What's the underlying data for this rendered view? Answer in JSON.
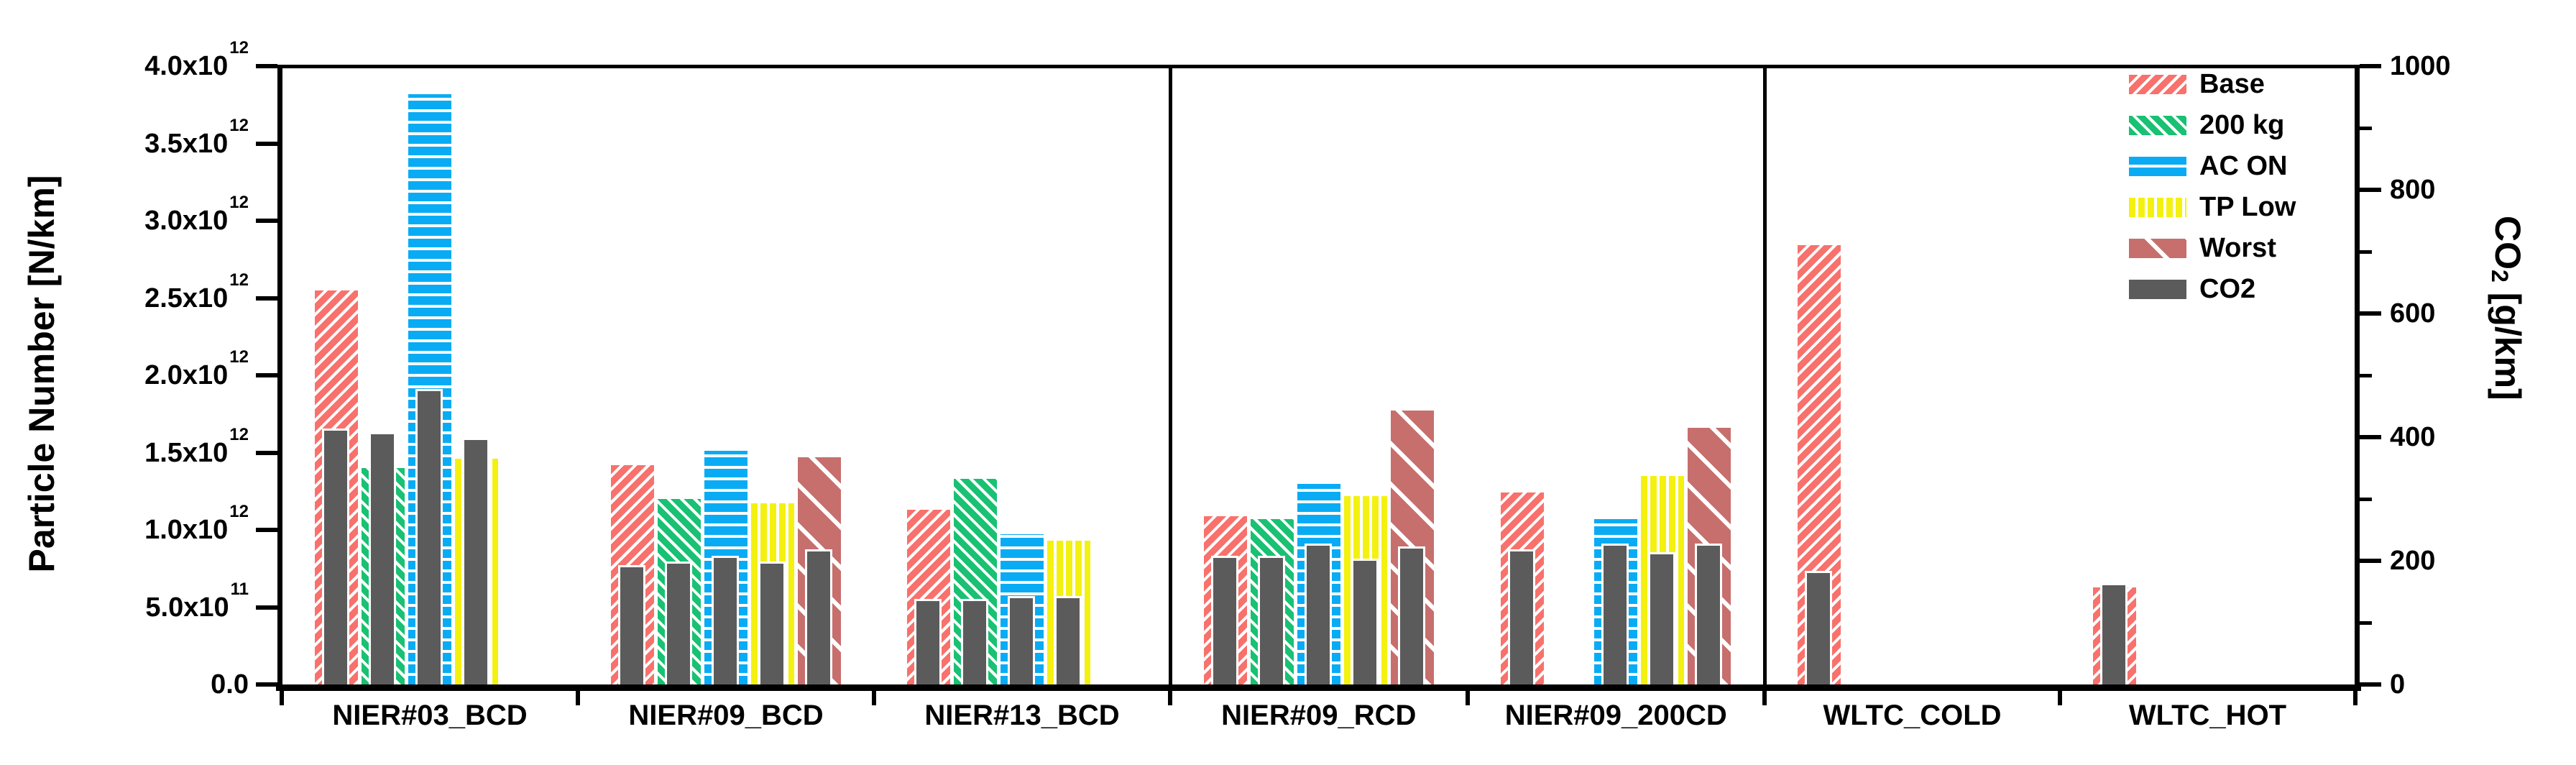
{
  "chart_data": {
    "type": "bar",
    "dual_axis": true,
    "left_axis": {
      "label": "Particle Number [N/km]",
      "min": 0,
      "max": 4000000000000.0,
      "major_step": 500000000000.0,
      "ticks": [
        {
          "m": "0.0",
          "e": ""
        },
        {
          "m": "5.0x10",
          "e": "11"
        },
        {
          "m": "1.0x10",
          "e": "12"
        },
        {
          "m": "1.5x10",
          "e": "12"
        },
        {
          "m": "2.0x10",
          "e": "12"
        },
        {
          "m": "2.5x10",
          "e": "12"
        },
        {
          "m": "3.0x10",
          "e": "12"
        },
        {
          "m": "3.5x10",
          "e": "12"
        },
        {
          "m": "4.0x10",
          "e": "12"
        }
      ]
    },
    "right_axis": {
      "label": "CO2 [g/km]",
      "label_pre": "CO",
      "label_sub": "2",
      "label_post": " [g/km]",
      "min": 0,
      "max": 1000,
      "major_step": 200,
      "minor_step": 100,
      "ticks": [
        "0",
        "200",
        "400",
        "600",
        "800",
        "1000"
      ]
    },
    "legend_position": "top-right",
    "grid": false,
    "series_slots": [
      "Base",
      "200 kg",
      "AC ON",
      "TP Low",
      "Worst"
    ],
    "co2_color": "#5b5b5b",
    "legend": [
      {
        "label": "Base",
        "color": "#f8716c",
        "pattern": "diag-up"
      },
      {
        "label": "200 kg",
        "color": "#19c173",
        "pattern": "diag-down"
      },
      {
        "label": "AC ON",
        "color": "#09acf4",
        "pattern": "horiz"
      },
      {
        "label": "TP Low",
        "color": "#f4f111",
        "pattern": "vert"
      },
      {
        "label": "Worst",
        "color": "#c66f6d",
        "pattern": "diag-down-wide"
      },
      {
        "label": "CO2",
        "color": "#5b5b5b",
        "pattern": "solid"
      }
    ],
    "sections": [
      [
        "NIER#03_BCD",
        "NIER#09_BCD",
        "NIER#13_BCD"
      ],
      [
        "NIER#09_RCD",
        "NIER#09_200CD"
      ],
      [
        "WLTC_COLD",
        "WLTC_HOT"
      ]
    ],
    "groups": [
      {
        "label": "NIER#03_BCD",
        "bars": {
          "Base": {
            "pn": 2550000000000.0,
            "co2": 410
          },
          "200 kg": {
            "pn": 1400000000000.0,
            "co2": 405
          },
          "AC ON": {
            "pn": 3820000000000.0,
            "co2": 475
          },
          "TP Low": {
            "pn": 1460000000000.0,
            "co2": 395
          }
        }
      },
      {
        "label": "NIER#09_BCD",
        "bars": {
          "Base": {
            "pn": 1420000000000.0,
            "co2": 190
          },
          "200 kg": {
            "pn": 1200000000000.0,
            "co2": 195
          },
          "AC ON": {
            "pn": 1510000000000.0,
            "co2": 205
          },
          "TP Low": {
            "pn": 1170000000000.0,
            "co2": 195
          },
          "Worst": {
            "pn": 1470000000000.0,
            "co2": 215
          }
        }
      },
      {
        "label": "NIER#13_BCD",
        "bars": {
          "Base": {
            "pn": 1130000000000.0,
            "co2": 135
          },
          "200 kg": {
            "pn": 1330000000000.0,
            "co2": 135
          },
          "AC ON": {
            "pn": 970000000000.0,
            "co2": 140
          },
          "TP Low": {
            "pn": 930000000000.0,
            "co2": 140
          }
        }
      },
      {
        "label": "NIER#09_RCD",
        "bars": {
          "Base": {
            "pn": 1090000000000.0,
            "co2": 205
          },
          "200 kg": {
            "pn": 1070000000000.0,
            "co2": 205
          },
          "AC ON": {
            "pn": 1300000000000.0,
            "co2": 225
          },
          "TP Low": {
            "pn": 1220000000000.0,
            "co2": 200
          },
          "Worst": {
            "pn": 1770000000000.0,
            "co2": 220
          }
        }
      },
      {
        "label": "NIER#09_200CD",
        "bars": {
          "Base": {
            "pn": 1240000000000.0,
            "co2": 215
          },
          "AC ON": {
            "pn": 1070000000000.0,
            "co2": 225
          },
          "TP Low": {
            "pn": 1350000000000.0,
            "co2": 210
          },
          "Worst": {
            "pn": 1660000000000.0,
            "co2": 225
          }
        }
      },
      {
        "label": "WLTC_COLD",
        "bars": {
          "Base": {
            "pn": 2840000000000.0,
            "co2": 180
          }
        }
      },
      {
        "label": "WLTC_HOT",
        "bars": {
          "Base": {
            "pn": 630000000000.0,
            "co2": 160
          }
        }
      }
    ]
  }
}
